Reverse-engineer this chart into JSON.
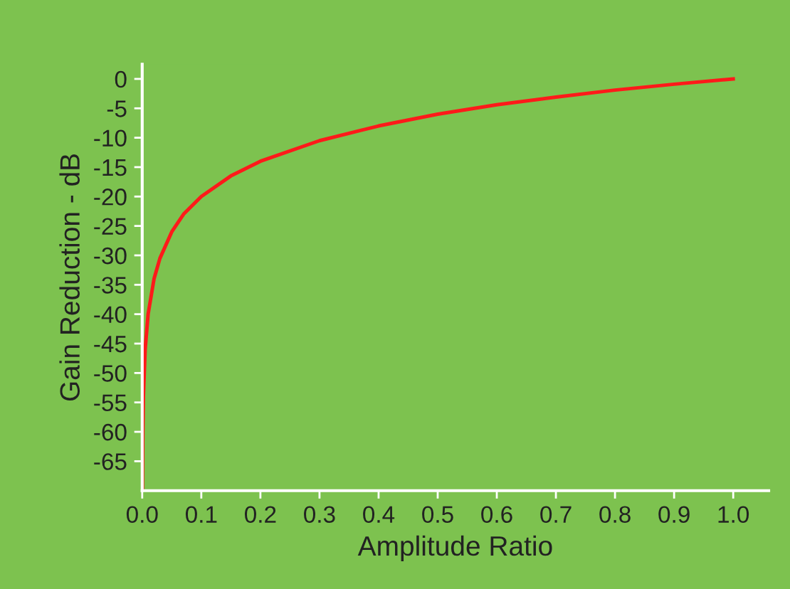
{
  "chart_data": {
    "type": "line",
    "xlabel": "Amplitude Ratio",
    "ylabel": "Gain Reduction - dB",
    "x": [
      0.0003,
      0.001,
      0.002,
      0.005,
      0.01,
      0.02,
      0.03,
      0.05,
      0.07,
      0.1,
      0.15,
      0.2,
      0.3,
      0.4,
      0.5,
      0.6,
      0.7,
      0.8,
      0.9,
      1.0
    ],
    "series": [
      {
        "color": "#ff1a1a",
        "values": [
          -70,
          -60,
          -54,
          -46,
          -40,
          -34,
          -30.5,
          -26,
          -23,
          -20,
          -16.5,
          -14,
          -10.5,
          -8,
          -6,
          -4.4,
          -3.1,
          -1.9,
          -0.9,
          0
        ]
      }
    ],
    "xlim": [
      0,
      1.06
    ],
    "ylim": [
      -70,
      2.5
    ],
    "xticks": [
      {
        "value": 0,
        "label": "0.0"
      },
      {
        "value": 0.1,
        "label": "0.1"
      },
      {
        "value": 0.2,
        "label": "0.2"
      },
      {
        "value": 0.3,
        "label": "0.3"
      },
      {
        "value": 0.4,
        "label": "0.4"
      },
      {
        "value": 0.5,
        "label": "0.5"
      },
      {
        "value": 0.6,
        "label": "0.6"
      },
      {
        "value": 0.7,
        "label": "0.7"
      },
      {
        "value": 0.8,
        "label": "0.8"
      },
      {
        "value": 0.9,
        "label": "0.9"
      },
      {
        "value": 1,
        "label": "1.0"
      }
    ],
    "yticks": [
      0,
      -5,
      -10,
      -15,
      -20,
      -25,
      -30,
      -35,
      -40,
      -45,
      -50,
      -55,
      -60,
      -65
    ],
    "grid": false,
    "marker": "none",
    "line_style": "solid"
  }
}
